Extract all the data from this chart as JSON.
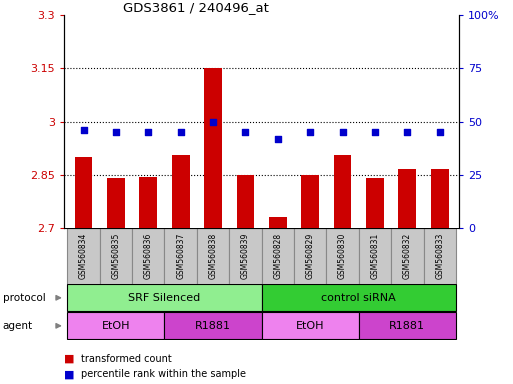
{
  "title": "GDS3861 / 240496_at",
  "samples": [
    "GSM560834",
    "GSM560835",
    "GSM560836",
    "GSM560837",
    "GSM560838",
    "GSM560839",
    "GSM560828",
    "GSM560829",
    "GSM560830",
    "GSM560831",
    "GSM560832",
    "GSM560833"
  ],
  "red_values": [
    2.9,
    2.84,
    2.845,
    2.905,
    3.15,
    2.85,
    2.73,
    2.85,
    2.905,
    2.84,
    2.865,
    2.865
  ],
  "blue_values": [
    46,
    45,
    45,
    45,
    50,
    45,
    42,
    45,
    45,
    45,
    45,
    45
  ],
  "ylim_left": [
    2.7,
    3.3
  ],
  "ylim_right": [
    0,
    100
  ],
  "yticks_left": [
    2.7,
    2.85,
    3.0,
    3.15,
    3.3
  ],
  "yticks_left_labels": [
    "2.7",
    "2.85",
    "3",
    "3.15",
    "3.3"
  ],
  "yticks_right": [
    0,
    25,
    50,
    75,
    100
  ],
  "yticks_right_labels": [
    "0",
    "25",
    "50",
    "75",
    "100%"
  ],
  "hlines": [
    2.85,
    3.0,
    3.15
  ],
  "protocol_groups": [
    {
      "label": "SRF Silenced",
      "start": 0,
      "end": 6,
      "color": "#90EE90"
    },
    {
      "label": "control siRNA",
      "start": 6,
      "end": 12,
      "color": "#33CC33"
    }
  ],
  "agent_groups": [
    {
      "label": "EtOH",
      "start": 0,
      "end": 3,
      "color": "#EE82EE"
    },
    {
      "label": "R1881",
      "start": 3,
      "end": 6,
      "color": "#CC44CC"
    },
    {
      "label": "EtOH",
      "start": 6,
      "end": 9,
      "color": "#EE82EE"
    },
    {
      "label": "R1881",
      "start": 9,
      "end": 12,
      "color": "#CC44CC"
    }
  ],
  "bar_color": "#CC0000",
  "dot_color": "#0000CC",
  "legend_red": "transformed count",
  "legend_blue": "percentile rank within the sample",
  "bar_width": 0.55,
  "tick_label_color_left": "#CC0000",
  "tick_label_color_right": "#0000CC",
  "label_bg": "#C8C8C8",
  "protocol_label": "protocol",
  "agent_label": "agent"
}
